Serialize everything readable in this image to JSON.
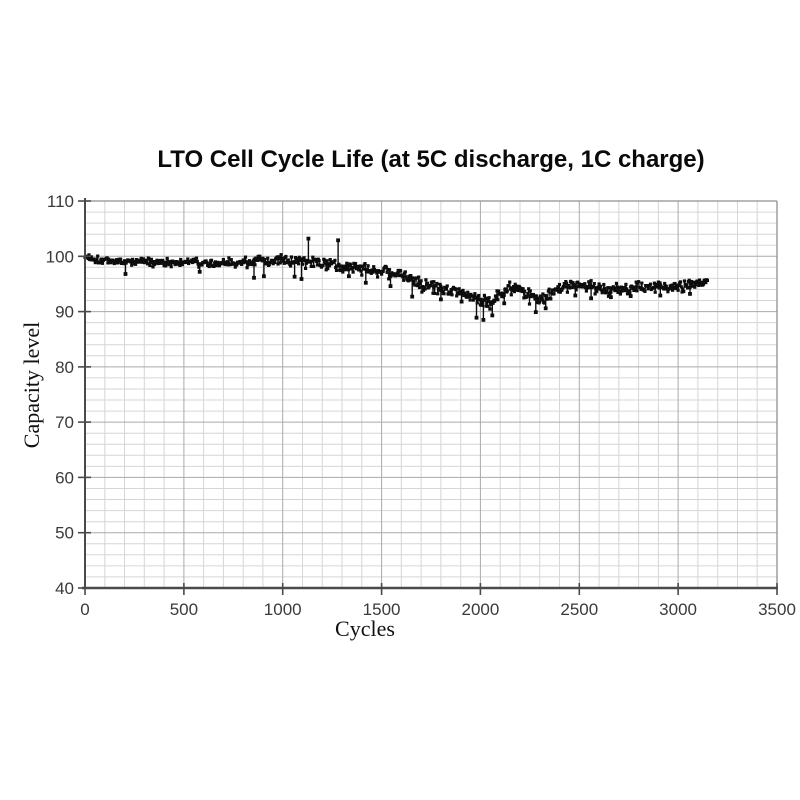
{
  "page": {
    "background": "#ffffff"
  },
  "chart_data": {
    "type": "scatter",
    "title": "LTO Cell Cycle Life (at 5C discharge, 1C charge)",
    "xlabel": "Cycles",
    "ylabel": "Capacity level",
    "xlim": [
      0,
      3500
    ],
    "ylim": [
      40,
      110
    ],
    "x_major_ticks": [
      0,
      500,
      1000,
      1500,
      2000,
      2500,
      3000,
      3500
    ],
    "y_major_ticks": [
      40,
      50,
      60,
      70,
      80,
      90,
      100,
      110
    ],
    "x_minor_step": 100,
    "y_minor_step": 2,
    "grid": "major and minor, both axes",
    "legend": "none",
    "marker": "small black square",
    "x_data_end": 3150,
    "sample_step_cycles": 4,
    "trend": [
      [
        0,
        100.0,
        0.5
      ],
      [
        50,
        99.5,
        0.5
      ],
      [
        150,
        99.1,
        0.6
      ],
      [
        300,
        99.0,
        0.6
      ],
      [
        450,
        98.9,
        0.6
      ],
      [
        550,
        99.0,
        0.6
      ],
      [
        650,
        98.6,
        0.7
      ],
      [
        750,
        98.8,
        0.7
      ],
      [
        850,
        99.1,
        0.8
      ],
      [
        950,
        99.1,
        0.8
      ],
      [
        1050,
        99.2,
        0.8
      ],
      [
        1150,
        98.9,
        0.9
      ],
      [
        1250,
        98.6,
        0.9
      ],
      [
        1350,
        98.2,
        0.9
      ],
      [
        1450,
        97.5,
        0.9
      ],
      [
        1550,
        97.0,
        0.9
      ],
      [
        1620,
        96.2,
        1.0
      ],
      [
        1700,
        95.2,
        1.1
      ],
      [
        1760,
        94.4,
        1.1
      ],
      [
        1820,
        94.3,
        1.0
      ],
      [
        1880,
        93.9,
        1.1
      ],
      [
        1950,
        93.2,
        1.2
      ],
      [
        2000,
        92.3,
        1.3
      ],
      [
        2050,
        91.8,
        1.3
      ],
      [
        2100,
        93.2,
        1.1
      ],
      [
        2150,
        94.3,
        1.0
      ],
      [
        2200,
        93.9,
        1.0
      ],
      [
        2250,
        92.8,
        1.1
      ],
      [
        2300,
        92.0,
        1.1
      ],
      [
        2350,
        93.4,
        1.0
      ],
      [
        2420,
        94.7,
        0.9
      ],
      [
        2500,
        94.9,
        0.9
      ],
      [
        2580,
        94.4,
        1.0
      ],
      [
        2650,
        94.1,
        1.0
      ],
      [
        2720,
        94.0,
        1.0
      ],
      [
        2800,
        94.4,
        0.9
      ],
      [
        2900,
        94.3,
        0.9
      ],
      [
        3000,
        94.6,
        0.9
      ],
      [
        3080,
        94.9,
        0.8
      ],
      [
        3150,
        95.7,
        0.6
      ]
    ],
    "outliers": [
      [
        205,
        96.8
      ],
      [
        580,
        97.2
      ],
      [
        855,
        96.1
      ],
      [
        905,
        96.4
      ],
      [
        1060,
        96.3
      ],
      [
        1095,
        95.9
      ],
      [
        1130,
        103.2
      ],
      [
        1280,
        102.9
      ],
      [
        1335,
        96.4
      ],
      [
        1420,
        95.2
      ],
      [
        1545,
        94.6
      ],
      [
        1655,
        92.7
      ],
      [
        1800,
        92.2
      ],
      [
        1905,
        91.8
      ],
      [
        1980,
        88.9
      ],
      [
        2015,
        88.5
      ],
      [
        2060,
        89.3
      ],
      [
        2120,
        91.5
      ],
      [
        2280,
        89.9
      ],
      [
        2330,
        90.6
      ],
      [
        2480,
        92.9
      ],
      [
        2560,
        92.4
      ],
      [
        2660,
        92.6
      ],
      [
        2760,
        92.8
      ],
      [
        2910,
        92.9
      ],
      [
        3060,
        93.2
      ]
    ],
    "colors": {
      "points": "#0d0d0d",
      "grid_minor": "#d6d6d6",
      "grid_major": "#aaaaaa",
      "axis": "#4a4a4a",
      "frame": "#8f8f8f",
      "tick_text": "#3a3a3a"
    }
  }
}
